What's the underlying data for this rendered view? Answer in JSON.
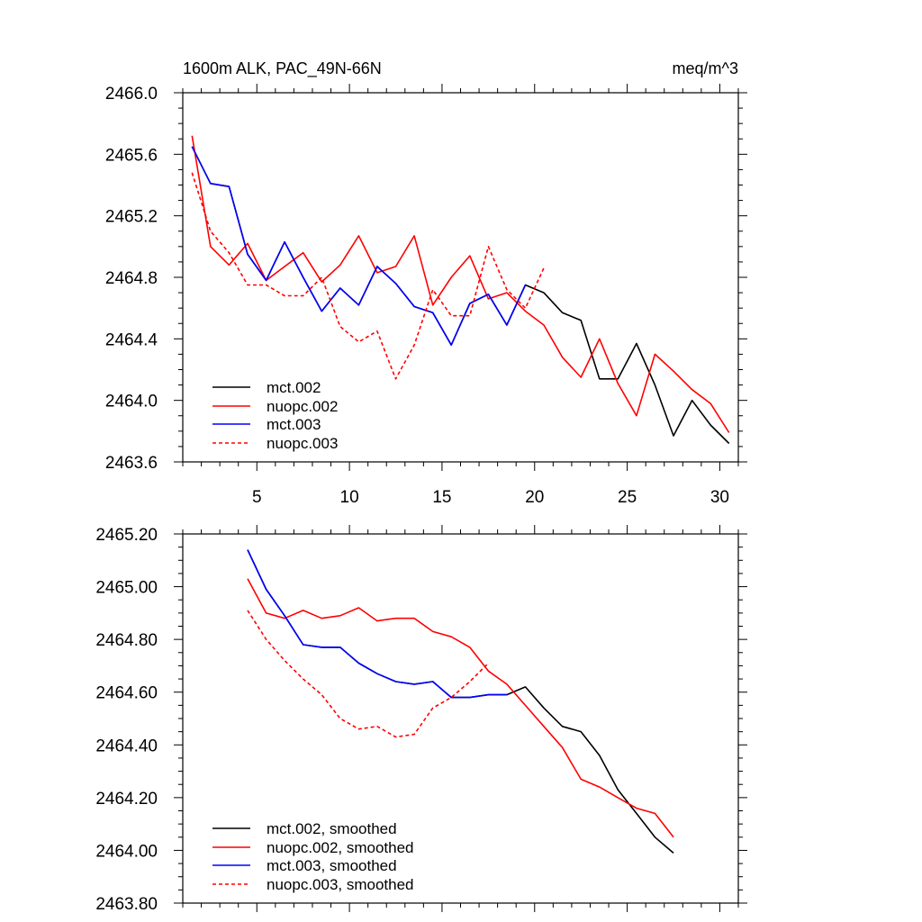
{
  "chart_data": [
    {
      "type": "line",
      "title": "1600m ALK, PAC_49N-66N",
      "units": "meq/m^3",
      "xlim": [
        1,
        31
      ],
      "ylim": [
        2463.6,
        2466.0
      ],
      "xticks": [
        5,
        10,
        15,
        20,
        25,
        30
      ],
      "xtick_labels": [
        "5",
        "10",
        "15",
        "20",
        "25",
        "30"
      ],
      "yticks": [
        2463.6,
        2464.0,
        2464.4,
        2464.8,
        2465.2,
        2465.6,
        2466.0
      ],
      "ytick_labels": [
        "2463.6",
        "2464.0",
        "2464.4",
        "2464.8",
        "2465.2",
        "2465.6",
        "2466.0"
      ],
      "grid": false,
      "legend_position": "bottom-left",
      "series": [
        {
          "name": "mct.002",
          "color": "#000000",
          "dash": "solid",
          "x": [
            1.5,
            2.5,
            3.5,
            4.5,
            5.5,
            6.5,
            7.5,
            8.5,
            9.5,
            10.5,
            11.5,
            12.5,
            13.5,
            14.5,
            15.5,
            16.5,
            17.5,
            18.5,
            19.5,
            20.5,
            21.5,
            22.5,
            23.5,
            24.5,
            25.5,
            26.5,
            27.5,
            28.5,
            29.5,
            30.5
          ],
          "values": [
            2465.65,
            2465.41,
            2465.39,
            2464.95,
            2464.78,
            2465.03,
            2464.8,
            2464.58,
            2464.73,
            2464.62,
            2464.87,
            2464.76,
            2464.61,
            2464.57,
            2464.36,
            2464.63,
            2464.69,
            2464.49,
            2464.75,
            2464.7,
            2464.57,
            2464.52,
            2464.14,
            2464.14,
            2464.37,
            2464.1,
            2463.77,
            2464.0,
            2463.84,
            2463.72
          ]
        },
        {
          "name": "nuopc.002",
          "color": "#ff0000",
          "dash": "solid",
          "x": [
            1.5,
            2.5,
            3.5,
            4.5,
            5.5,
            6.5,
            7.5,
            8.5,
            9.5,
            10.5,
            11.5,
            12.5,
            13.5,
            14.5,
            15.5,
            16.5,
            17.5,
            18.5,
            19.5,
            20.5,
            21.5,
            22.5,
            23.5,
            24.5,
            25.5,
            26.5,
            27.5,
            28.5,
            29.5,
            30.5
          ],
          "values": [
            2465.72,
            2465.0,
            2464.88,
            2465.02,
            2464.78,
            2464.87,
            2464.96,
            2464.77,
            2464.88,
            2465.07,
            2464.83,
            2464.87,
            2465.07,
            2464.62,
            2464.8,
            2464.94,
            2464.66,
            2464.7,
            2464.58,
            2464.49,
            2464.28,
            2464.15,
            2464.4,
            2464.11,
            2463.9,
            2464.3,
            2464.19,
            2464.07,
            2463.98,
            2463.79
          ]
        },
        {
          "name": "mct.003",
          "color": "#0000ff",
          "dash": "solid",
          "x": [
            1.5,
            2.5,
            3.5,
            4.5,
            5.5,
            6.5,
            7.5,
            8.5,
            9.5,
            10.5,
            11.5,
            12.5,
            13.5,
            14.5,
            15.5,
            16.5,
            17.5,
            18.5,
            19.5
          ],
          "values": [
            2465.65,
            2465.41,
            2465.39,
            2464.95,
            2464.78,
            2465.03,
            2464.8,
            2464.58,
            2464.73,
            2464.62,
            2464.87,
            2464.76,
            2464.61,
            2464.57,
            2464.36,
            2464.63,
            2464.69,
            2464.49,
            2464.75
          ]
        },
        {
          "name": "nuopc.003",
          "color": "#ff0000",
          "dash": "dashed",
          "x": [
            1.5,
            2.5,
            3.5,
            4.5,
            5.5,
            6.5,
            7.5,
            8.5,
            9.5,
            10.5,
            11.5,
            12.5,
            13.5,
            14.5,
            15.5,
            16.5,
            17.5,
            18.5,
            19.5,
            20.5
          ],
          "values": [
            2465.48,
            2465.1,
            2464.96,
            2464.75,
            2464.75,
            2464.68,
            2464.68,
            2464.8,
            2464.48,
            2464.38,
            2464.45,
            2464.14,
            2464.36,
            2464.72,
            2464.55,
            2464.55,
            2465.0,
            2464.72,
            2464.6,
            2464.86
          ]
        }
      ]
    },
    {
      "type": "line",
      "xlim": [
        1,
        31
      ],
      "ylim": [
        2463.8,
        2465.2
      ],
      "xticks": [
        5,
        10,
        15,
        20,
        25,
        30
      ],
      "yticks": [
        2463.8,
        2464.0,
        2464.2,
        2464.4,
        2464.6,
        2464.8,
        2465.0,
        2465.2
      ],
      "ytick_labels": [
        "2463.80",
        "2464.00",
        "2464.20",
        "2464.40",
        "2464.60",
        "2464.80",
        "2465.00",
        "2465.20"
      ],
      "grid": false,
      "legend_position": "bottom-left",
      "series": [
        {
          "name": "mct.002, smoothed",
          "color": "#000000",
          "dash": "solid",
          "x": [
            4.5,
            5.5,
            6.5,
            7.5,
            8.5,
            9.5,
            10.5,
            11.5,
            12.5,
            13.5,
            14.5,
            15.5,
            16.5,
            17.5,
            18.5,
            19.5,
            20.5,
            21.5,
            22.5,
            23.5,
            24.5,
            25.5,
            26.5,
            27.5
          ],
          "values": [
            2465.14,
            2464.99,
            2464.89,
            2464.78,
            2464.77,
            2464.77,
            2464.71,
            2464.67,
            2464.64,
            2464.63,
            2464.64,
            2464.58,
            2464.58,
            2464.59,
            2464.59,
            2464.62,
            2464.54,
            2464.47,
            2464.45,
            2464.36,
            2464.23,
            2464.14,
            2464.05,
            2463.99
          ]
        },
        {
          "name": "nuopc.002, smoothed",
          "color": "#ff0000",
          "dash": "solid",
          "x": [
            4.5,
            5.5,
            6.5,
            7.5,
            8.5,
            9.5,
            10.5,
            11.5,
            12.5,
            13.5,
            14.5,
            15.5,
            16.5,
            17.5,
            18.5,
            19.5,
            20.5,
            21.5,
            22.5,
            23.5,
            24.5,
            25.5,
            26.5,
            27.5
          ],
          "values": [
            2465.03,
            2464.9,
            2464.88,
            2464.91,
            2464.88,
            2464.89,
            2464.92,
            2464.87,
            2464.88,
            2464.88,
            2464.83,
            2464.81,
            2464.77,
            2464.68,
            2464.63,
            2464.55,
            2464.47,
            2464.39,
            2464.27,
            2464.24,
            2464.2,
            2464.16,
            2464.14,
            2464.05
          ]
        },
        {
          "name": "mct.003, smoothed",
          "color": "#0000ff",
          "dash": "solid",
          "x": [
            4.5,
            5.5,
            6.5,
            7.5,
            8.5,
            9.5,
            10.5,
            11.5,
            12.5,
            13.5,
            14.5,
            15.5,
            16.5,
            17.5,
            18.5
          ],
          "values": [
            2465.14,
            2464.99,
            2464.89,
            2464.78,
            2464.77,
            2464.77,
            2464.71,
            2464.67,
            2464.64,
            2464.63,
            2464.64,
            2464.58,
            2464.58,
            2464.59,
            2464.59
          ]
        },
        {
          "name": "nuopc.003, smoothed",
          "color": "#ff0000",
          "dash": "dashed",
          "x": [
            4.5,
            5.5,
            6.5,
            7.5,
            8.5,
            9.5,
            10.5,
            11.5,
            12.5,
            13.5,
            14.5,
            15.5,
            16.5,
            17.5
          ],
          "values": [
            2464.91,
            2464.8,
            2464.72,
            2464.65,
            2464.59,
            2464.5,
            2464.46,
            2464.47,
            2464.43,
            2464.44,
            2464.54,
            2464.58,
            2464.64,
            2464.71
          ]
        }
      ]
    }
  ]
}
